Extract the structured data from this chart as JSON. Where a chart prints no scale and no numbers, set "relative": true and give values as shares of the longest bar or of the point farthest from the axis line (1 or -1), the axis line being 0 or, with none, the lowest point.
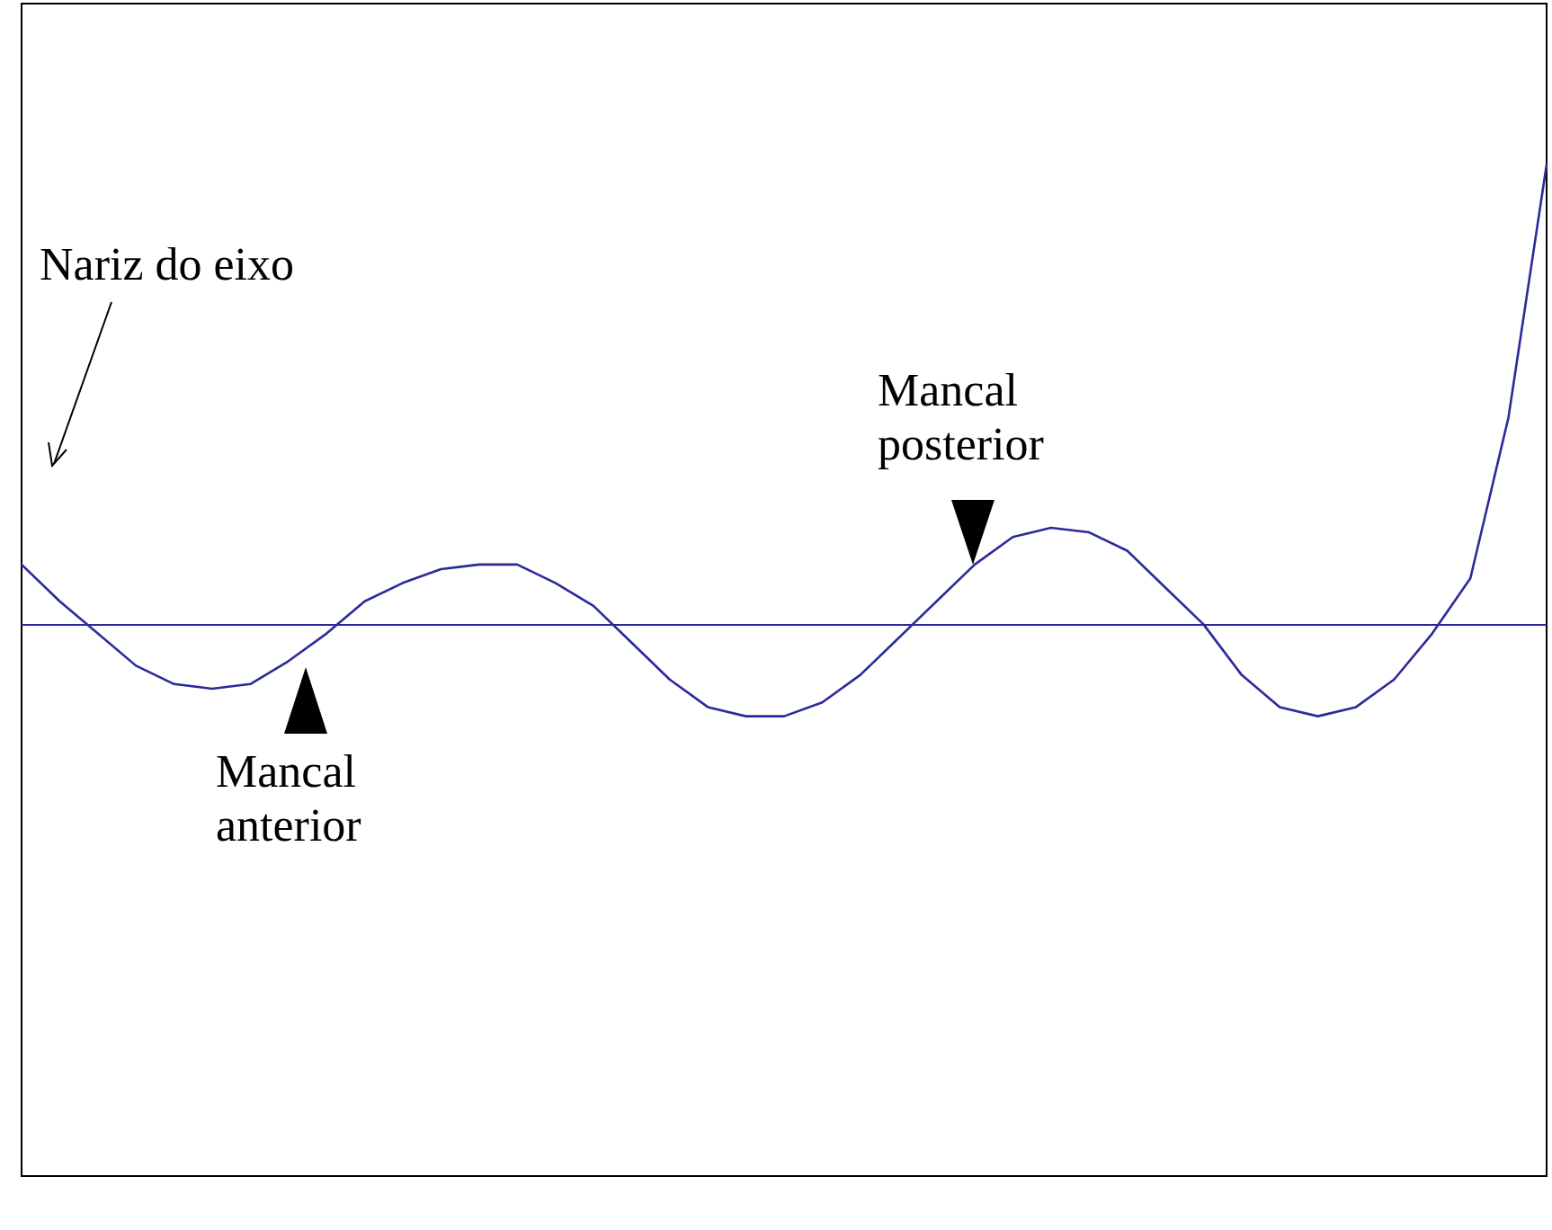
{
  "chart_data": {
    "type": "line",
    "relative": true,
    "marker": "none",
    "line_style": "solid",
    "grid": false,
    "categories": [
      null,
      null,
      null,
      null,
      null,
      null,
      null,
      null,
      null,
      null,
      null,
      null,
      null,
      null,
      null,
      null,
      null,
      null,
      null,
      null,
      null,
      null,
      null,
      null,
      null,
      null,
      null,
      null,
      null,
      null,
      null,
      null,
      null,
      null,
      null,
      null,
      null,
      null,
      null,
      null,
      null
    ],
    "series": [
      {
        "color": "#2a2a9a",
        "values": [
          0.13,
          0.05,
          -0.02,
          -0.09,
          -0.13,
          -0.14,
          -0.13,
          -0.08,
          -0.02,
          0.05,
          0.09,
          0.12,
          0.13,
          0.13,
          0.09,
          0.04,
          -0.04,
          -0.12,
          -0.18,
          -0.2,
          -0.2,
          -0.17,
          -0.11,
          -0.03,
          0.05,
          0.13,
          0.19,
          0.21,
          0.2,
          0.16,
          0.08,
          0,
          -0.11,
          -0.18,
          -0.2,
          -0.18,
          -0.12,
          -0.02,
          0.1,
          0.45,
          1
        ]
      }
    ],
    "ref_lines": [
      {
        "axis": "y",
        "value": 0,
        "color": "#2a2a9a"
      }
    ],
    "annotations": [
      "Nariz do eixo",
      "Mancal anterior",
      "Mancal posterior"
    ]
  }
}
